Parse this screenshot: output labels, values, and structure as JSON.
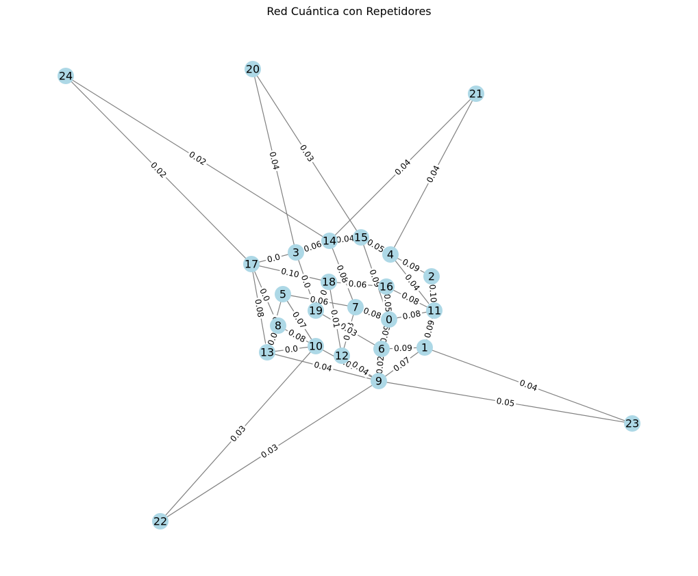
{
  "title": "Red Cuántica con Repetidores",
  "colors": {
    "node": "#add8e6",
    "edge": "#808080",
    "background": "#ffffff"
  },
  "nodes": [
    "0",
    "1",
    "2",
    "3",
    "4",
    "5",
    "6",
    "7",
    "8",
    "9",
    "10",
    "11",
    "12",
    "13",
    "14",
    "15",
    "16",
    "17",
    "18",
    "19",
    "20",
    "21",
    "22",
    "23",
    "24"
  ],
  "edges": [
    {
      "source": "24",
      "target": "17",
      "label": "0.02"
    },
    {
      "source": "24",
      "target": "14",
      "label": "0.02"
    },
    {
      "source": "20",
      "target": "3",
      "label": "0.04"
    },
    {
      "source": "20",
      "target": "15",
      "label": "0.03"
    },
    {
      "source": "21",
      "target": "14",
      "label": "0.04"
    },
    {
      "source": "21",
      "target": "4",
      "label": "0.04"
    },
    {
      "source": "22",
      "target": "10",
      "label": "0.03"
    },
    {
      "source": "22",
      "target": "9",
      "label": "0.03"
    },
    {
      "source": "23",
      "target": "1",
      "label": "0.04"
    },
    {
      "source": "23",
      "target": "9",
      "label": "0.05"
    },
    {
      "source": "17",
      "target": "13",
      "label": "0.08"
    },
    {
      "source": "17",
      "target": "3",
      "label": "0.0"
    },
    {
      "source": "17",
      "target": "18",
      "label": "0.10"
    },
    {
      "source": "17",
      "target": "8",
      "label": "0.0"
    },
    {
      "source": "3",
      "target": "14",
      "label": "0.06"
    },
    {
      "source": "3",
      "target": "19",
      "label": "0.0"
    },
    {
      "source": "14",
      "target": "15",
      "label": "0.04"
    },
    {
      "source": "14",
      "target": "7",
      "label": "0.08"
    },
    {
      "source": "15",
      "target": "4",
      "label": "0.05"
    },
    {
      "source": "15",
      "target": "0",
      "label": "0.09"
    },
    {
      "source": "4",
      "target": "2",
      "label": "0.09"
    },
    {
      "source": "4",
      "target": "11",
      "label": "0.04"
    },
    {
      "source": "2",
      "target": "11",
      "label": "0.10"
    },
    {
      "source": "18",
      "target": "16",
      "label": "0.06"
    },
    {
      "source": "18",
      "target": "19",
      "label": "0.0"
    },
    {
      "source": "16",
      "target": "11",
      "label": "0.08"
    },
    {
      "source": "16",
      "target": "0",
      "label": "0.05"
    },
    {
      "source": "5",
      "target": "13",
      "label": "0.0"
    },
    {
      "source": "5",
      "target": "10",
      "label": "0.07"
    },
    {
      "source": "7",
      "target": "0",
      "label": "0.08"
    },
    {
      "source": "7",
      "target": "12",
      "label": "0.08"
    },
    {
      "source": "19",
      "target": "6",
      "label": "0.03"
    },
    {
      "source": "0",
      "target": "11",
      "label": "0.08"
    },
    {
      "source": "0",
      "target": "6",
      "label": "0.09"
    },
    {
      "source": "11",
      "target": "1",
      "label": "0.09"
    },
    {
      "source": "1",
      "target": "9",
      "label": "0.07"
    },
    {
      "source": "1",
      "target": "6",
      "label": "0.09"
    },
    {
      "source": "8",
      "target": "13",
      "label": "0.0"
    },
    {
      "source": "8",
      "target": "10",
      "label": "0.08"
    },
    {
      "source": "13",
      "target": "10",
      "label": "0.0"
    },
    {
      "source": "13",
      "target": "9",
      "label": "0.04"
    },
    {
      "source": "10",
      "target": "9",
      "label": "0.07"
    },
    {
      "source": "12",
      "target": "9",
      "label": "0.04"
    },
    {
      "source": "6",
      "target": "9",
      "label": "0.02"
    },
    {
      "source": "5",
      "target": "7",
      "label": "0.06"
    },
    {
      "source": "12",
      "target": "18",
      "label": "0.01"
    }
  ]
}
